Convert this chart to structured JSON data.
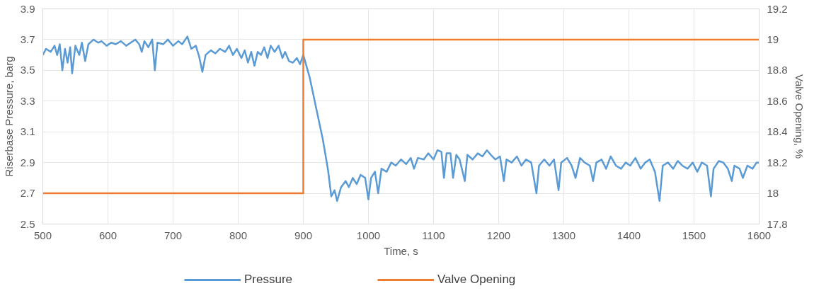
{
  "chart_data": {
    "type": "line",
    "xlabel": "Time, s",
    "ylabel": "Riserbase Pressure, barg",
    "y2label": "Valve Opening, %",
    "xlim": [
      500,
      1600
    ],
    "xticks": [
      500,
      600,
      700,
      800,
      900,
      1000,
      1100,
      1200,
      1300,
      1400,
      1500,
      1600
    ],
    "ylim": [
      2.5,
      3.9
    ],
    "yticks": [
      2.5,
      2.7,
      2.9,
      3.1,
      3.3,
      3.5,
      3.7,
      3.9
    ],
    "y2lim": [
      17.8,
      19.2
    ],
    "y2ticks": [
      17.8,
      18,
      18.2,
      18.4,
      18.6,
      18.8,
      19,
      19.2
    ],
    "grid": true,
    "legend": "bottom",
    "line_style": "solid",
    "marker": "none",
    "series": [
      {
        "name": "Pressure",
        "color": "#5b9bd5",
        "x": [
          500,
          505,
          512,
          518,
          522,
          526,
          530,
          534,
          538,
          542,
          545,
          550,
          556,
          560,
          565,
          570,
          578,
          585,
          590,
          598,
          605,
          612,
          620,
          628,
          635,
          642,
          648,
          652,
          656,
          662,
          668,
          672,
          676,
          685,
          692,
          700,
          708,
          714,
          722,
          728,
          735,
          740,
          745,
          750,
          758,
          765,
          772,
          780,
          786,
          792,
          798,
          805,
          810,
          815,
          820,
          825,
          830,
          835,
          840,
          845,
          850,
          856,
          862,
          868,
          872,
          878,
          884,
          890,
          895,
          900,
          910,
          920,
          930,
          938,
          943,
          948,
          952,
          958,
          965,
          970,
          976,
          982,
          988,
          995,
          1000,
          1004,
          1010,
          1015,
          1020,
          1028,
          1035,
          1042,
          1050,
          1058,
          1065,
          1070,
          1076,
          1085,
          1092,
          1100,
          1106,
          1112,
          1116,
          1120,
          1126,
          1130,
          1135,
          1140,
          1148,
          1152,
          1160,
          1168,
          1175,
          1182,
          1188,
          1195,
          1202,
          1208,
          1212,
          1220,
          1228,
          1235,
          1242,
          1250,
          1258,
          1262,
          1270,
          1278,
          1285,
          1292,
          1296,
          1305,
          1312,
          1318,
          1325,
          1332,
          1340,
          1345,
          1350,
          1358,
          1365,
          1372,
          1380,
          1388,
          1395,
          1402,
          1410,
          1418,
          1425,
          1432,
          1440,
          1447,
          1452,
          1460,
          1468,
          1475,
          1482,
          1490,
          1498,
          1505,
          1512,
          1520,
          1526,
          1530,
          1538,
          1545,
          1552,
          1558,
          1562,
          1570,
          1575,
          1582,
          1590,
          1596,
          1600
        ],
        "values": [
          3.6,
          3.64,
          3.62,
          3.66,
          3.6,
          3.67,
          3.5,
          3.64,
          3.55,
          3.65,
          3.48,
          3.66,
          3.6,
          3.68,
          3.56,
          3.67,
          3.7,
          3.68,
          3.69,
          3.66,
          3.68,
          3.67,
          3.69,
          3.66,
          3.68,
          3.7,
          3.67,
          3.62,
          3.69,
          3.65,
          3.7,
          3.5,
          3.68,
          3.67,
          3.7,
          3.66,
          3.69,
          3.67,
          3.72,
          3.64,
          3.66,
          3.59,
          3.49,
          3.6,
          3.63,
          3.61,
          3.64,
          3.62,
          3.66,
          3.6,
          3.64,
          3.58,
          3.63,
          3.55,
          3.62,
          3.53,
          3.62,
          3.6,
          3.65,
          3.58,
          3.66,
          3.62,
          3.66,
          3.58,
          3.62,
          3.56,
          3.55,
          3.58,
          3.54,
          3.6,
          3.45,
          3.25,
          3.05,
          2.85,
          2.68,
          2.72,
          2.65,
          2.74,
          2.78,
          2.74,
          2.8,
          2.76,
          2.82,
          2.8,
          2.66,
          2.8,
          2.84,
          2.7,
          2.86,
          2.84,
          2.9,
          2.88,
          2.92,
          2.89,
          2.93,
          2.86,
          2.93,
          2.92,
          2.96,
          2.92,
          2.98,
          2.97,
          2.8,
          2.96,
          2.96,
          2.8,
          2.95,
          2.92,
          2.78,
          2.95,
          2.92,
          2.96,
          2.94,
          2.98,
          2.95,
          2.92,
          2.94,
          2.78,
          2.92,
          2.9,
          2.94,
          2.88,
          2.92,
          2.9,
          2.7,
          2.88,
          2.92,
          2.88,
          2.92,
          2.72,
          2.9,
          2.93,
          2.88,
          2.8,
          2.93,
          2.9,
          2.88,
          2.78,
          2.9,
          2.92,
          2.86,
          2.94,
          2.88,
          2.86,
          2.9,
          2.88,
          2.93,
          2.86,
          2.9,
          2.92,
          2.84,
          2.65,
          2.88,
          2.9,
          2.86,
          2.91,
          2.88,
          2.86,
          2.9,
          2.84,
          2.9,
          2.88,
          2.68,
          2.86,
          2.91,
          2.9,
          2.86,
          2.78,
          2.88,
          2.86,
          2.8,
          2.88,
          2.86,
          2.9,
          2.9
        ]
      },
      {
        "name": "Valve Opening",
        "color": "#ed7d31",
        "axis": "y2",
        "x": [
          500,
          900,
          900,
          1600
        ],
        "values": [
          18,
          18,
          19,
          19
        ]
      }
    ]
  }
}
